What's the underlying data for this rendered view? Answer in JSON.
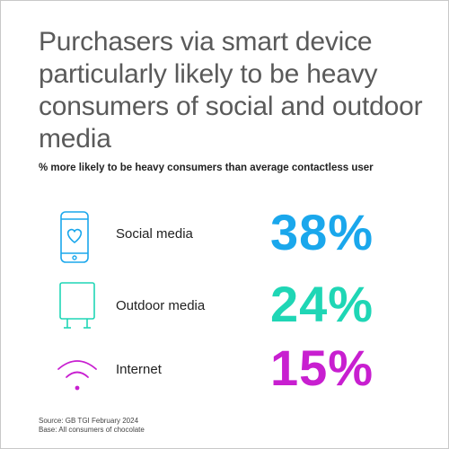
{
  "title": "Purchasers via smart device particularly likely to be heavy consumers of social and outdoor media",
  "subtitle": "% more likely to be heavy consumers than average contactless user",
  "source_line1": "Source: GB TGI February 2024",
  "source_line2": "Base: All consumers of chocolate",
  "chart_data": {
    "type": "table",
    "categories": [
      "Social media",
      "Outdoor media",
      "Internet"
    ],
    "values": [
      38,
      24,
      15
    ],
    "value_labels": [
      "38%",
      "24%",
      "15%"
    ],
    "colors": [
      "#1aa7ec",
      "#1fd6b5",
      "#c81fd0"
    ],
    "icons": [
      "smartphone-heart-icon",
      "billboard-icon",
      "wifi-icon"
    ]
  }
}
